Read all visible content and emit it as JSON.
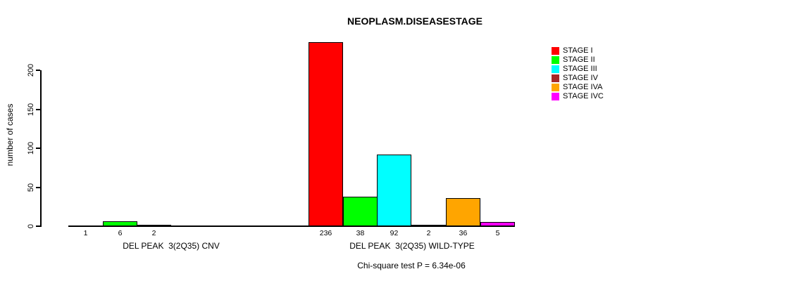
{
  "title": "NEOPLASM.DISEASESTAGE",
  "subtitle": "Chi-square test P = 6.34e-06",
  "chart_data": {
    "type": "bar",
    "title": "NEOPLASM.DISEASESTAGE",
    "ylabel": "number of cases",
    "xlabel": "",
    "ylim": [
      0,
      236
    ],
    "yticks": [
      0,
      50,
      100,
      150,
      200
    ],
    "grid": false,
    "legend_position": "right",
    "series_labels": [
      "STAGE I",
      "STAGE II",
      "STAGE III",
      "STAGE IV",
      "STAGE IVA",
      "STAGE IVC"
    ],
    "colors": [
      "#FF0000",
      "#00FF00",
      "#00FFFF",
      "#A52A2A",
      "#FFA500",
      "#FF00FF"
    ],
    "groups": [
      {
        "label": "DEL PEAK  3(2Q35) CNV",
        "values": [
          1,
          6,
          2,
          0,
          0,
          0
        ],
        "bar_labels": [
          "1",
          "6",
          "2",
          "",
          "",
          ""
        ]
      },
      {
        "label": "DEL PEAK  3(2Q35) WILD-TYPE",
        "values": [
          236,
          38,
          92,
          2,
          36,
          5
        ],
        "bar_labels": [
          "236",
          "38",
          "92",
          "2",
          "36",
          "5"
        ]
      }
    ],
    "annotation": "Chi-square test P = 6.34e-06"
  }
}
